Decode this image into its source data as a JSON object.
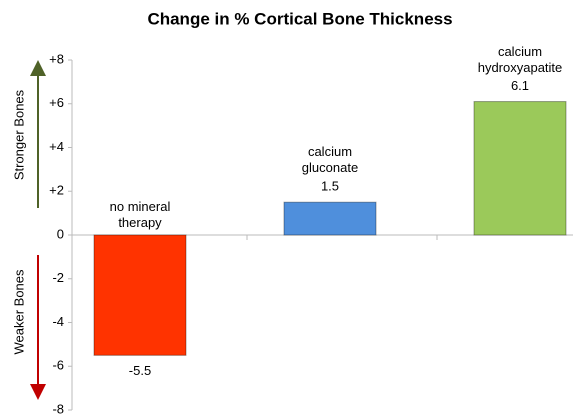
{
  "chart_data": {
    "type": "bar",
    "title": "Change in % Cortical Bone Thickness",
    "categories": [
      "no mineral therapy",
      "calcium gluconate",
      "calcium hydroxyapatite"
    ],
    "values": [
      -5.5,
      1.5,
      6.1
    ],
    "colors": [
      "#ff3300",
      "#4f8fdc",
      "#9bc95a"
    ],
    "ylim": [
      -8,
      8
    ],
    "yticks": [
      {
        "value": 8,
        "label": "+8"
      },
      {
        "value": 6,
        "label": "+6"
      },
      {
        "value": 4,
        "label": "+4"
      },
      {
        "value": 2,
        "label": "+2"
      },
      0,
      -2,
      -4,
      -6,
      -8
    ],
    "annotations": [
      "Stronger Bones",
      "Weaker Bones"
    ]
  }
}
